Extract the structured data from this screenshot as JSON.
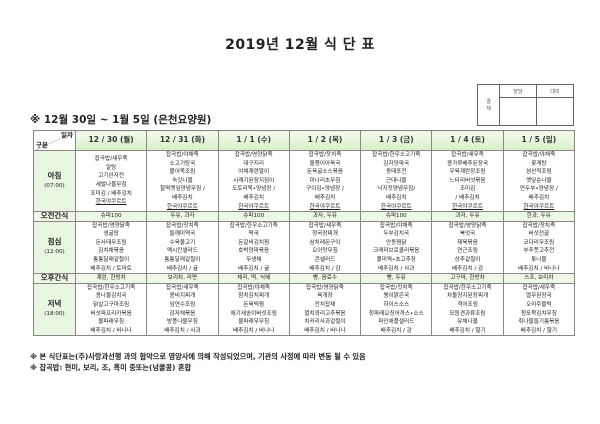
{
  "title": "2019년 12월 식 단 표",
  "approval": {
    "label": "결\n재",
    "col1": "담당",
    "col2": "대리"
  },
  "subtitle": "※ 12월 30일 ~ 1월 5일 (은천요양원)",
  "table": {
    "corner_top": "일자",
    "corner_bottom": "구분",
    "days": [
      "12 / 30 (월)",
      "12 / 31 (화)",
      "1 / 1 (수)",
      "1 / 2 (목)",
      "1 / 3 (금)",
      "1 / 4 (토)",
      "1 / 5 (일)"
    ],
    "rows": [
      {
        "label": "아침",
        "time": "(07:00)",
        "type": "meal",
        "cells": [
          [
            "잡곡밥/새우죽",
            "알탕",
            "고기완자전",
            "세발나물무침",
            "조미김 / 배추김치",
            "한국야쿠르트"
          ],
          [
            "잡곡밥/야채죽",
            "소고기탕국",
            "볼어묵조림",
            "숙갓나물",
            "찰떡깻잎양념무침 /",
            "배추김치",
            "한국야쿠르트"
          ],
          [
            "잡곡밥/영양닭죽",
            "대구지리",
            "야채계란말이",
            "시래기된장지짐이",
            "도토리묵•양념장 /",
            "배추김치",
            "한국야쿠르트"
          ],
          [
            "잡곡밥/잣치죽",
            "올챙이아욱국",
            "돈육굴소스볶음",
            "미나리초무침",
            "구이김•양념장 /",
            "배추김치",
            "한국야쿠르트"
          ],
          [
            "잡곡밥/한우소고기죽",
            "감자양파국",
            "동태포전",
            "근대나물",
            "낙지젓양념무침/",
            "배추김치",
            "한국야쿠르트"
          ],
          [
            "잡곡밥/새우죽",
            "콩가루배추된장국",
            "우육계란장조림",
            "느타리버섯볶음",
            "조미김",
            "/ 배추김치",
            "한국야쿠르트"
          ],
          [
            "잡곡밥/야채죽",
            "꽃게탕",
            "섬산적조림",
            "깻잎순나물",
            "연두부•양념장 /",
            "배추김치",
            "한국야쿠르트"
          ]
        ]
      },
      {
        "label": "오전간식",
        "type": "snack",
        "cells": [
          "슈퍼100",
          "두유, 과자",
          "슈퍼100",
          "과자, 두유",
          "슈퍼100",
          "과자, 두유",
          "한과, 두유"
        ]
      },
      {
        "label": "점심",
        "time": "(12:00)",
        "type": "meal",
        "cells": [
          [
            "잡곡밥/영양닭죽",
            "생굴탕",
            "돈사태무조림",
            "김치채볶음",
            "통통달래겉절이",
            "배추김치 / 토마토"
          ],
          [
            "잡곡밥/잣치죽",
            "들깨미역국",
            "수육불고기",
            "멕시칸샐러드",
            "통통달래겉절이",
            "배추김치 / 귤"
          ],
          [
            "잡곡밥/한우소고기죽",
            "떡국",
            "돈갈비김치찜",
            "호박양파볶음",
            "무생채",
            "배추김치 / 귤"
          ],
          [
            "잡곡밥/새우죽",
            "청국장찌개",
            "삼치레몬구이",
            "오이맛무침",
            "콘샐러드",
            "배추김치 / 감"
          ],
          [
            "잡곡밥/야채죽",
            "두부김치국",
            "안동찜닭",
            "크래미브로콜리볶음",
            "풀미역•초고추장",
            "배추김치 / 사과"
          ],
          [
            "잡곡밥/영양닭죽",
            "북엇국",
            "제육볶음",
            "연근조림",
            "상추겉절이",
            "배추김치 / 감"
          ],
          [
            "잡곡밥/잣치죽",
            "버섯전골",
            "코다리무조림",
            "부추풋고추전",
            "톳나물",
            "배추김치 / 바나나"
          ]
        ]
      },
      {
        "label": "오후간식",
        "type": "snack",
        "cells": [
          "계란, 한방차",
          "보리차, 라면",
          "체리, 떡, 식혜",
          "빵, 음료수",
          "빵, 두유",
          "고구마, 한방차",
          "스프, 보리차"
        ]
      },
      {
        "label": "저녁",
        "time": "(18:00)",
        "type": "meal",
        "cells": [
          [
            "잡곡밥/한우소고기죽",
            "콩나물김치국",
            "닭살고구마조림",
            "버섯파프리카볶음",
            "물파래무침",
            "배추김치 / 바나나"
          ],
          [
            "잡곡밥/새우죽",
            "콩비지찌개",
            "임연수조림",
            "감자채볶음",
            "방풍나물무침",
            "배추김치 / 사과"
          ],
          [
            "잡곡밥/야채죽",
            "참치김치찌개",
            "돈육떡찜",
            "애기새송이버섯조림",
            "물파래무무침",
            "배추김치 / 바나나"
          ],
          [
            "잡곡밥/영양닭죽",
            "육개장",
            "잔치잡채",
            "멸치꽈리고추볶음",
            "치커리사과겉절이",
            "배추김치 / 바나나"
          ],
          [
            "잡곡밥/잣치죽",
            "팽이맑은국",
            "하이스소스",
            "청파래오징어까스•소스",
            "파인애플샐러드",
            "배추김치 / 감"
          ],
          [
            "잡곡밥/한우소고기죽",
            "차돌양지된장찌개",
            "격어조림",
            "모듬견과류조림",
            "유채나물",
            "배추김치 / 딸기"
          ],
          [
            "잡곡밥/새우죽",
            "열무된장국",
            "오리주물럭",
            "청포묵김치무침",
            "취나물들기름볶음",
            "배추김치 / 딸기"
          ]
        ]
      }
    ]
  },
  "notes": [
    "※ 본 식단표는(주)사랑과선행 과의 협약으로 영양사에 의해 작성되었으며, 기관의 사정에 따라 변동 될 수 있음",
    "※ 잡곡밥: 현미, 보리, 조, 흑미 중또는(넝쿨콩) 혼합"
  ],
  "colors": {
    "header_green": "#d7efc8",
    "label_green": "#e9f6e0",
    "border": "#888888"
  }
}
